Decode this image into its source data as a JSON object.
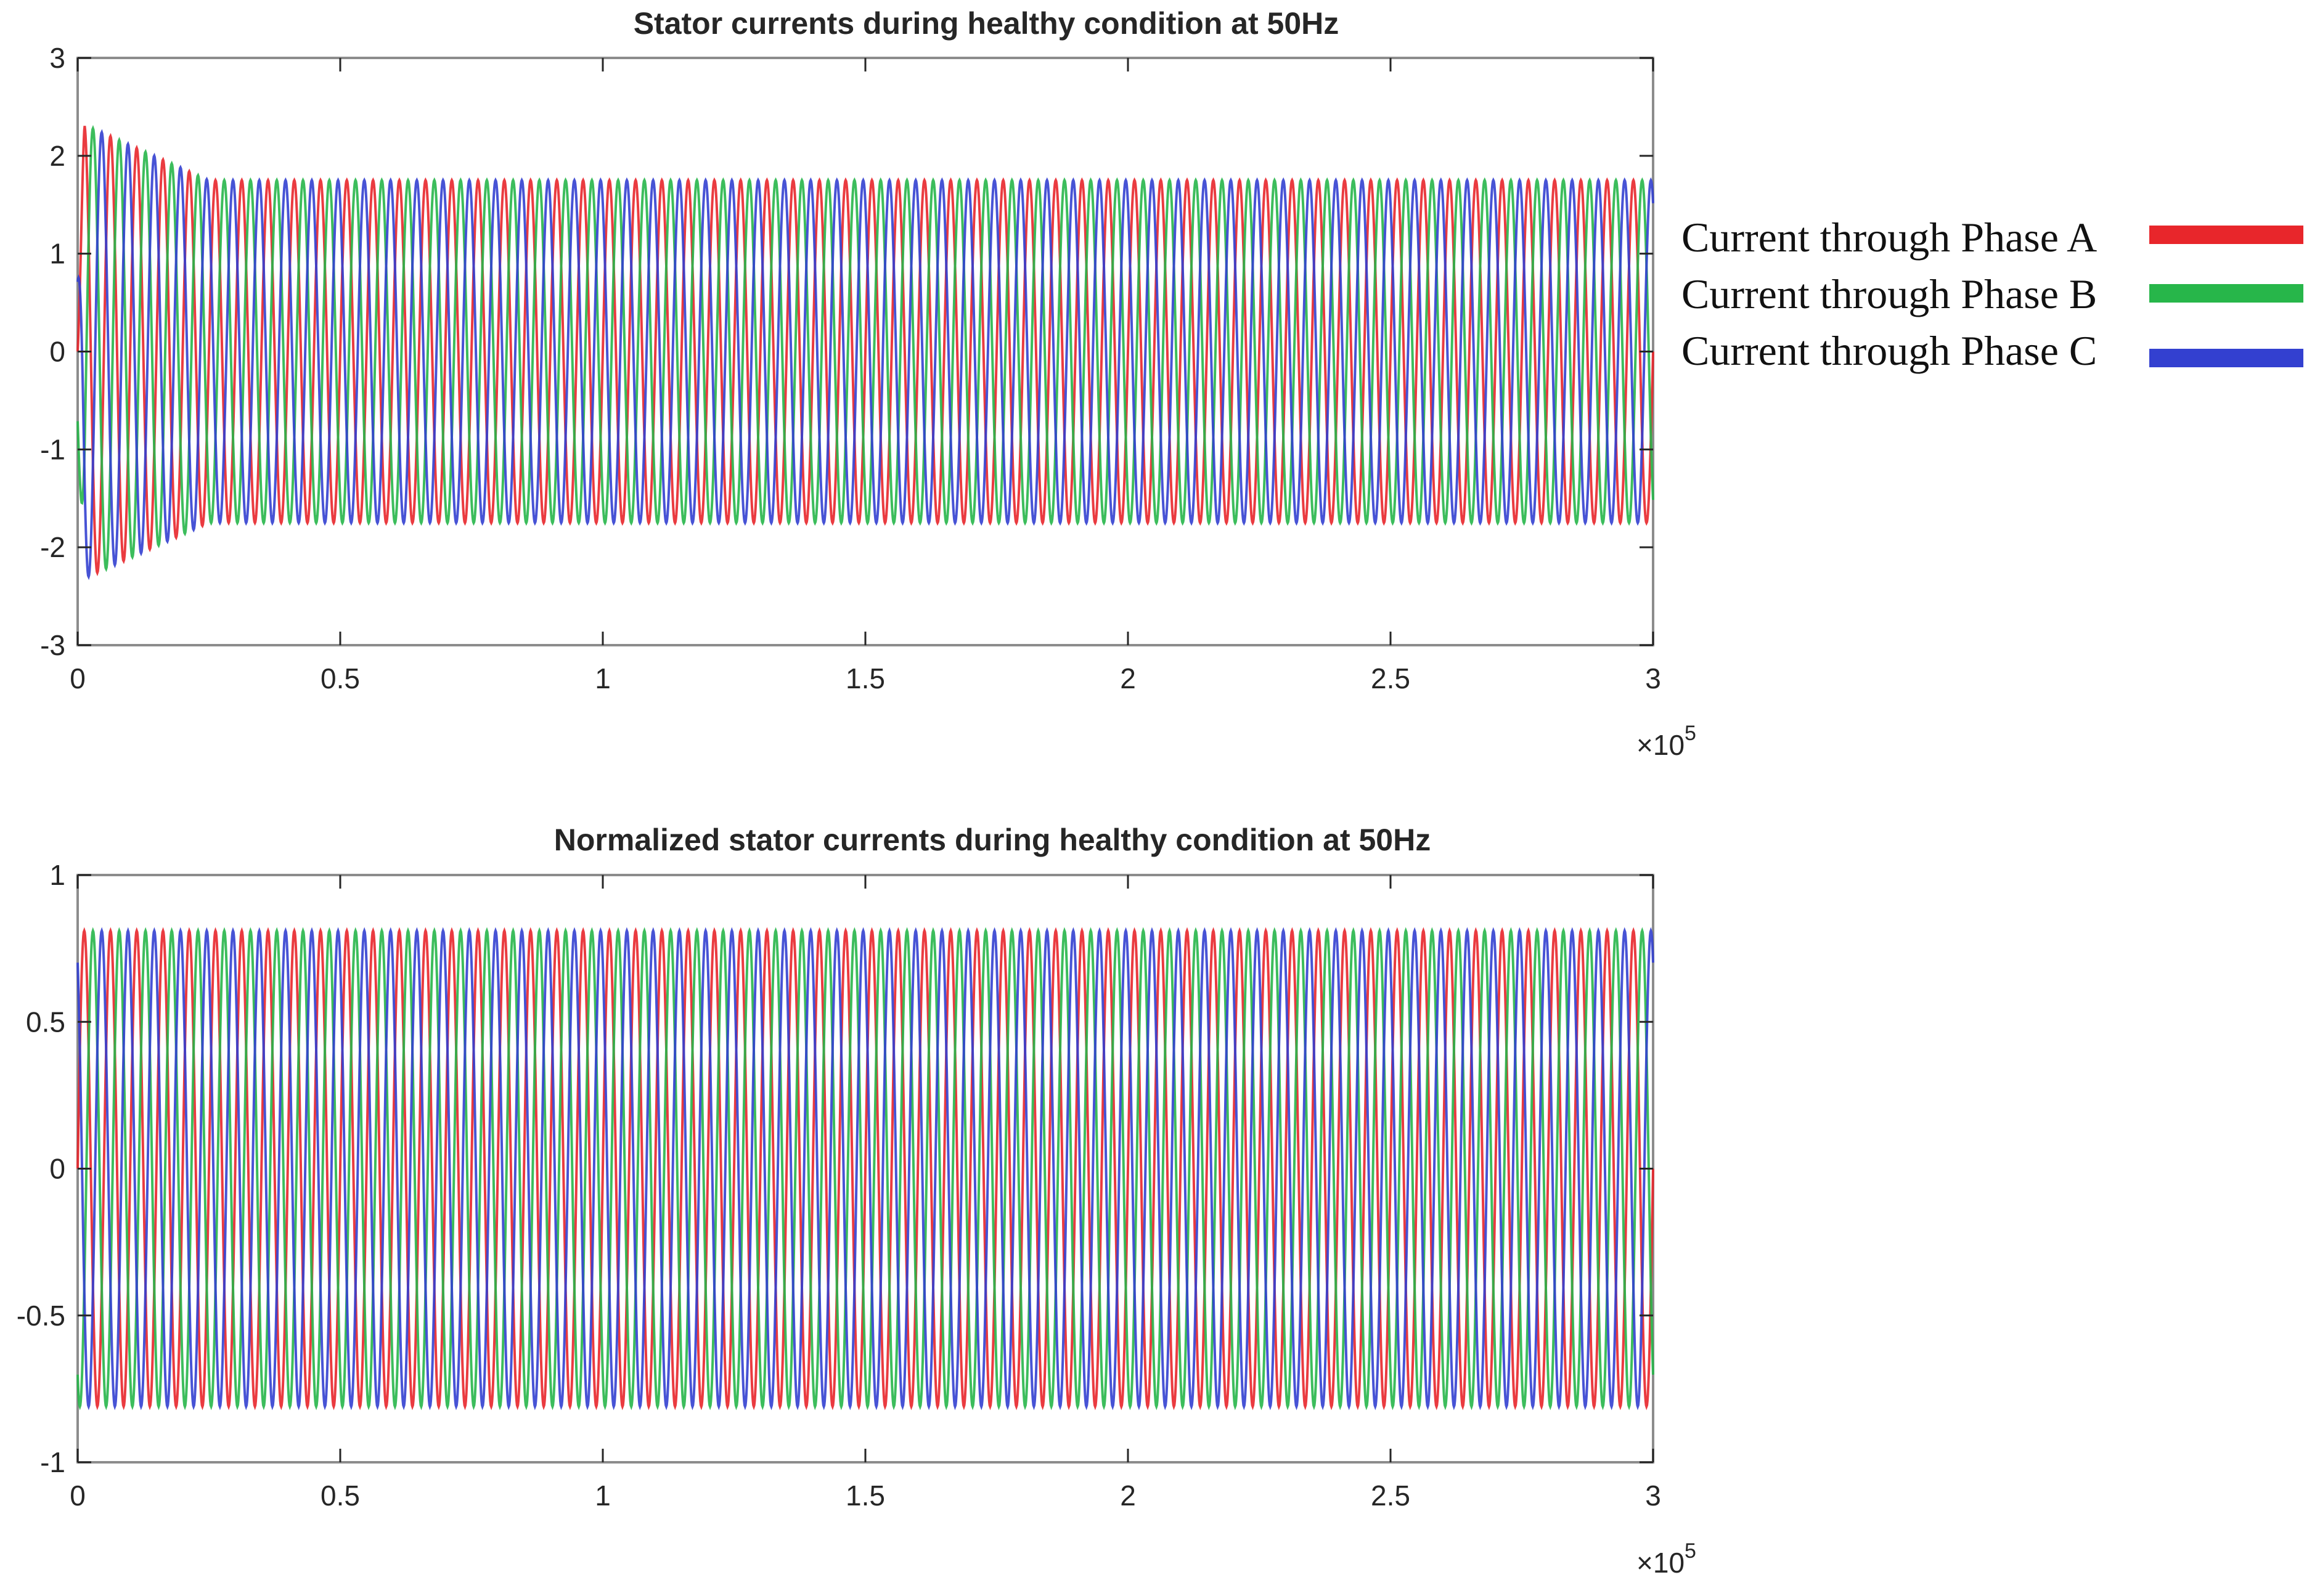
{
  "legend": {
    "entries": [
      {
        "label": "Current through Phase A",
        "color": "#e8262b"
      },
      {
        "label": "Current through Phase B",
        "color": "#27b64a"
      },
      {
        "label": "Current through Phase C",
        "color": "#3340d0"
      }
    ]
  },
  "chart_data": [
    {
      "type": "line",
      "title": "Stator currents during healthy condition at 50Hz",
      "xlabel": "",
      "ylabel": "",
      "xlim": [
        0,
        300000
      ],
      "ylim": [
        -3,
        3
      ],
      "x_ticks": [
        0,
        50000,
        100000,
        150000,
        200000,
        250000,
        300000
      ],
      "x_tick_labels": [
        "0",
        "0.5",
        "1",
        "1.5",
        "2",
        "2.5",
        "3"
      ],
      "x_exponent_label": "×10",
      "x_exponent": "5",
      "y_ticks": [
        -3,
        -2,
        -1,
        0,
        1,
        2,
        3
      ],
      "y_tick_labels": [
        "-3",
        "-2",
        "-1",
        "0",
        "1",
        "2",
        "3"
      ],
      "grid": false,
      "signal": {
        "cycles": 60,
        "steady_amplitude": 1.75,
        "transient_peak": 2.35,
        "transient_settle_x": 25000,
        "start_x": 0,
        "end_x": 300000
      },
      "series": [
        {
          "name": "Current through Phase A",
          "color": "#e8262b",
          "phase_deg": 0
        },
        {
          "name": "Current through Phase B",
          "color": "#27b64a",
          "phase_deg": -120
        },
        {
          "name": "Current through Phase C",
          "color": "#3340d0",
          "phase_deg": 120
        }
      ]
    },
    {
      "type": "line",
      "title": "Normalized stator currents during healthy condition at 50Hz",
      "xlabel": "",
      "ylabel": "",
      "xlim": [
        0,
        300000
      ],
      "ylim": [
        -1,
        1
      ],
      "x_ticks": [
        0,
        50000,
        100000,
        150000,
        200000,
        250000,
        300000
      ],
      "x_tick_labels": [
        "0",
        "0.5",
        "1",
        "1.5",
        "2",
        "2.5",
        "3"
      ],
      "x_exponent_label": "×10",
      "x_exponent": "5",
      "y_ticks": [
        -1,
        -0.5,
        0,
        0.5,
        1
      ],
      "y_tick_labels": [
        "-1",
        "-0.5",
        "0",
        "0.5",
        "1"
      ],
      "grid": false,
      "signal": {
        "cycles": 60,
        "steady_amplitude": 0.81,
        "transient_peak": 0.81,
        "transient_settle_x": 0,
        "start_x": 0,
        "end_x": 300000
      },
      "series": [
        {
          "name": "Current through Phase A",
          "color": "#e8262b",
          "phase_deg": 0
        },
        {
          "name": "Current through Phase B",
          "color": "#27b64a",
          "phase_deg": -120
        },
        {
          "name": "Current through Phase C",
          "color": "#3340d0",
          "phase_deg": 120
        }
      ]
    }
  ]
}
